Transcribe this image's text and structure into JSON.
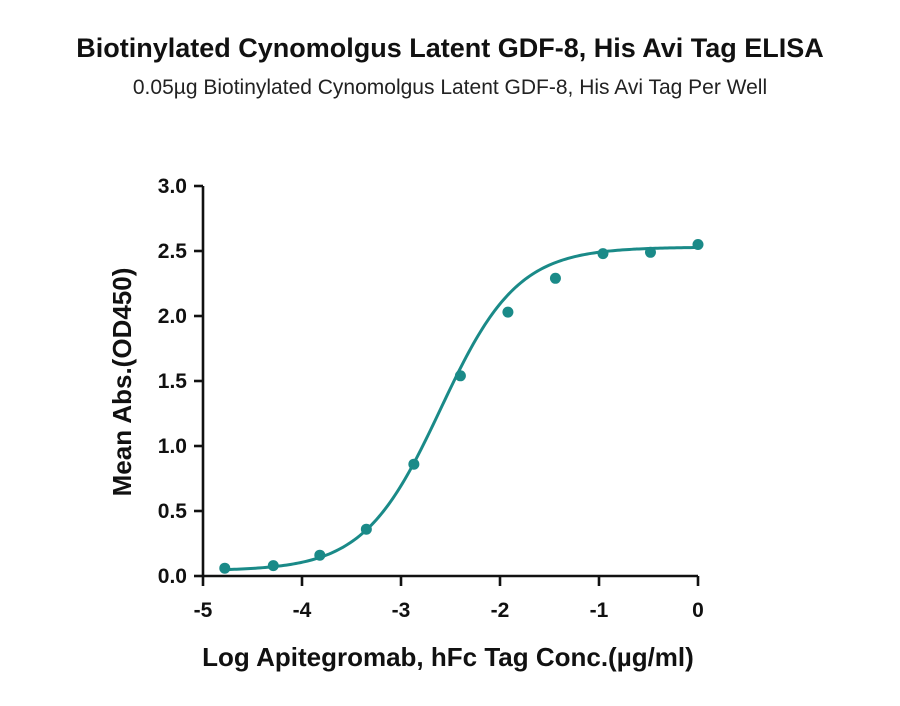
{
  "header": {
    "title": "Biotinylated Cynomolgus Latent GDF-8, His Avi Tag ELISA",
    "subtitle": "0.05µg Biotinylated Cynomolgus Latent GDF-8, His Avi Tag Per Well"
  },
  "chart_data": {
    "type": "scatter",
    "title": "Biotinylated Cynomolgus Latent GDF-8, His Avi Tag ELISA",
    "subtitle": "0.05µg Biotinylated Cynomolgus Latent GDF-8, His Avi Tag Per Well",
    "xlabel": "Log Apitegromab, hFc Tag Conc.(µg/ml)",
    "ylabel": "Mean Abs.(OD450)",
    "xlim": [
      -5,
      0
    ],
    "ylim": [
      0,
      3
    ],
    "xticks": [
      "-5",
      "-4",
      "-3",
      "-2",
      "-1",
      "0"
    ],
    "xtick_values": [
      -5,
      -4,
      -3,
      -2,
      -1,
      0
    ],
    "yticks": [
      "0.0",
      "0.5",
      "1.0",
      "1.5",
      "2.0",
      "2.5",
      "3.0"
    ],
    "ytick_values": [
      0,
      0.5,
      1.0,
      1.5,
      2.0,
      2.5,
      3.0
    ],
    "grid": false,
    "legend": "none",
    "color": "#1a8a88",
    "series": [
      {
        "points": [
          {
            "x": -4.78,
            "y": 0.06
          },
          {
            "x": -4.29,
            "y": 0.08
          },
          {
            "x": -3.82,
            "y": 0.16
          },
          {
            "x": -3.35,
            "y": 0.36
          },
          {
            "x": -2.87,
            "y": 0.86
          },
          {
            "x": -2.4,
            "y": 1.54
          },
          {
            "x": -1.92,
            "y": 2.03
          },
          {
            "x": -1.44,
            "y": 2.29
          },
          {
            "x": -0.96,
            "y": 2.48
          },
          {
            "x": -0.48,
            "y": 2.49
          },
          {
            "x": 0.0,
            "y": 2.55
          }
        ]
      }
    ],
    "fit": {
      "type": "4PL",
      "bottom": 0.04,
      "top": 2.53,
      "log_ec50": -2.6,
      "hill_slope": 1.12
    }
  }
}
